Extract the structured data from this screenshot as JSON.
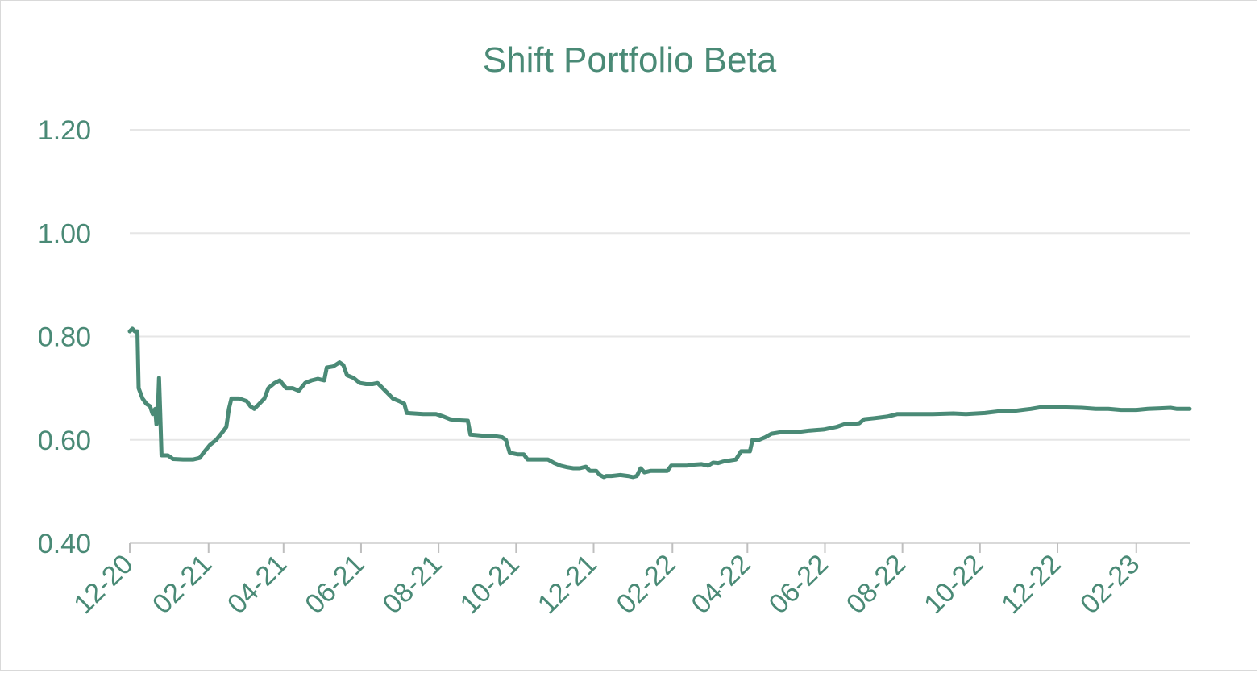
{
  "chart_data": {
    "type": "line",
    "title": "Shift Portfolio Beta",
    "xlabel": "",
    "ylabel": "",
    "y_ticks": [
      "0.40",
      "0.60",
      "0.80",
      "1.00",
      "1.20"
    ],
    "ylim": [
      0.4,
      1.2
    ],
    "x_ticks": [
      "12-20",
      "02-21",
      "04-21",
      "06-21",
      "08-21",
      "10-21",
      "12-21",
      "02-22",
      "04-22",
      "06-22",
      "08-22",
      "10-22",
      "12-22",
      "02-23"
    ],
    "xlim": [
      "2020-12-01",
      "2023-03-15"
    ],
    "grid": true,
    "legend": "none",
    "colors": {
      "line": "#4a8a76",
      "text": "#4a8a76",
      "grid": "#e6e6e6"
    },
    "series": [
      {
        "points": [
          [
            "2020-12-01",
            0.81
          ],
          [
            "2020-12-03",
            0.815
          ],
          [
            "2020-12-05",
            0.81
          ],
          [
            "2020-12-07",
            0.81
          ],
          [
            "2020-12-08",
            0.7
          ],
          [
            "2020-12-11",
            0.68
          ],
          [
            "2020-12-14",
            0.67
          ],
          [
            "2020-12-17",
            0.665
          ],
          [
            "2020-12-19",
            0.65
          ],
          [
            "2020-12-21",
            0.66
          ],
          [
            "2020-12-22",
            0.63
          ],
          [
            "2020-12-23",
            0.65
          ],
          [
            "2020-12-24",
            0.72
          ],
          [
            "2020-12-25",
            0.65
          ],
          [
            "2020-12-26",
            0.57
          ],
          [
            "2020-12-31",
            0.57
          ],
          [
            "2021-01-04",
            0.563
          ],
          [
            "2021-01-12",
            0.562
          ],
          [
            "2021-01-20",
            0.562
          ],
          [
            "2021-01-25",
            0.565
          ],
          [
            "2021-01-28",
            0.575
          ],
          [
            "2021-02-02",
            0.59
          ],
          [
            "2021-02-07",
            0.6
          ],
          [
            "2021-02-12",
            0.615
          ],
          [
            "2021-02-15",
            0.625
          ],
          [
            "2021-02-17",
            0.66
          ],
          [
            "2021-02-19",
            0.68
          ],
          [
            "2021-02-25",
            0.68
          ],
          [
            "2021-03-03",
            0.675
          ],
          [
            "2021-03-06",
            0.665
          ],
          [
            "2021-03-09",
            0.66
          ],
          [
            "2021-03-13",
            0.67
          ],
          [
            "2021-03-17",
            0.68
          ],
          [
            "2021-03-20",
            0.7
          ],
          [
            "2021-03-25",
            0.71
          ],
          [
            "2021-03-29",
            0.715
          ],
          [
            "2021-04-03",
            0.7
          ],
          [
            "2021-04-08",
            0.7
          ],
          [
            "2021-04-13",
            0.695
          ],
          [
            "2021-04-18",
            0.71
          ],
          [
            "2021-04-23",
            0.715
          ],
          [
            "2021-04-28",
            0.718
          ],
          [
            "2021-05-03",
            0.715
          ],
          [
            "2021-05-05",
            0.74
          ],
          [
            "2021-05-10",
            0.742
          ],
          [
            "2021-05-15",
            0.75
          ],
          [
            "2021-05-18",
            0.745
          ],
          [
            "2021-05-21",
            0.725
          ],
          [
            "2021-05-26",
            0.72
          ],
          [
            "2021-05-31",
            0.71
          ],
          [
            "2021-06-05",
            0.708
          ],
          [
            "2021-06-10",
            0.708
          ],
          [
            "2021-06-14",
            0.71
          ],
          [
            "2021-06-18",
            0.7
          ],
          [
            "2021-06-22",
            0.69
          ],
          [
            "2021-06-26",
            0.68
          ],
          [
            "2021-07-01",
            0.675
          ],
          [
            "2021-07-05",
            0.67
          ],
          [
            "2021-07-07",
            0.652
          ],
          [
            "2021-07-20",
            0.65
          ],
          [
            "2021-07-30",
            0.65
          ],
          [
            "2021-08-05",
            0.645
          ],
          [
            "2021-08-10",
            0.64
          ],
          [
            "2021-08-16",
            0.638
          ],
          [
            "2021-08-24",
            0.637
          ],
          [
            "2021-08-26",
            0.61
          ],
          [
            "2021-09-05",
            0.608
          ],
          [
            "2021-09-15",
            0.607
          ],
          [
            "2021-09-20",
            0.605
          ],
          [
            "2021-09-23",
            0.6
          ],
          [
            "2021-09-26",
            0.575
          ],
          [
            "2021-10-02",
            0.572
          ],
          [
            "2021-10-07",
            0.572
          ],
          [
            "2021-10-10",
            0.562
          ],
          [
            "2021-10-18",
            0.562
          ],
          [
            "2021-10-26",
            0.562
          ],
          [
            "2021-10-31",
            0.555
          ],
          [
            "2021-11-05",
            0.55
          ],
          [
            "2021-11-10",
            0.547
          ],
          [
            "2021-11-15",
            0.545
          ],
          [
            "2021-11-20",
            0.545
          ],
          [
            "2021-11-25",
            0.548
          ],
          [
            "2021-11-28",
            0.54
          ],
          [
            "2021-12-03",
            0.54
          ],
          [
            "2021-12-06",
            0.532
          ],
          [
            "2021-12-09",
            0.528
          ],
          [
            "2021-12-11",
            0.53
          ],
          [
            "2021-12-15",
            0.53
          ],
          [
            "2021-12-22",
            0.532
          ],
          [
            "2021-12-28",
            0.53
          ],
          [
            "2022-01-01",
            0.528
          ],
          [
            "2022-01-04",
            0.53
          ],
          [
            "2022-01-07",
            0.545
          ],
          [
            "2022-01-10",
            0.537
          ],
          [
            "2022-01-15",
            0.54
          ],
          [
            "2022-01-22",
            0.54
          ],
          [
            "2022-01-28",
            0.54
          ],
          [
            "2022-01-31",
            0.55
          ],
          [
            "2022-02-05",
            0.55
          ],
          [
            "2022-02-12",
            0.55
          ],
          [
            "2022-02-18",
            0.552
          ],
          [
            "2022-02-24",
            0.553
          ],
          [
            "2022-03-01",
            0.55
          ],
          [
            "2022-03-05",
            0.556
          ],
          [
            "2022-03-09",
            0.555
          ],
          [
            "2022-03-13",
            0.558
          ],
          [
            "2022-03-18",
            0.56
          ],
          [
            "2022-03-23",
            0.562
          ],
          [
            "2022-03-27",
            0.578
          ],
          [
            "2022-04-03",
            0.578
          ],
          [
            "2022-04-05",
            0.6
          ],
          [
            "2022-04-10",
            0.6
          ],
          [
            "2022-04-15",
            0.605
          ],
          [
            "2022-04-20",
            0.612
          ],
          [
            "2022-04-28",
            0.615
          ],
          [
            "2022-05-10",
            0.615
          ],
          [
            "2022-05-20",
            0.618
          ],
          [
            "2022-05-31",
            0.62
          ],
          [
            "2022-06-10",
            0.625
          ],
          [
            "2022-06-16",
            0.63
          ],
          [
            "2022-06-28",
            0.632
          ],
          [
            "2022-07-02",
            0.64
          ],
          [
            "2022-07-10",
            0.642
          ],
          [
            "2022-07-20",
            0.645
          ],
          [
            "2022-07-28",
            0.65
          ],
          [
            "2022-08-10",
            0.65
          ],
          [
            "2022-08-25",
            0.65
          ],
          [
            "2022-09-10",
            0.651
          ],
          [
            "2022-09-20",
            0.65
          ],
          [
            "2022-10-05",
            0.652
          ],
          [
            "2022-10-15",
            0.655
          ],
          [
            "2022-10-28",
            0.656
          ],
          [
            "2022-11-10",
            0.66
          ],
          [
            "2022-11-20",
            0.664
          ],
          [
            "2022-12-05",
            0.663
          ],
          [
            "2022-12-20",
            0.662
          ],
          [
            "2022-12-31",
            0.66
          ],
          [
            "2023-01-10",
            0.66
          ],
          [
            "2023-01-20",
            0.658
          ],
          [
            "2023-02-01",
            0.658
          ],
          [
            "2023-02-10",
            0.66
          ],
          [
            "2023-02-20",
            0.661
          ],
          [
            "2023-02-28",
            0.662
          ],
          [
            "2023-03-05",
            0.66
          ],
          [
            "2023-03-15",
            0.66
          ]
        ]
      }
    ]
  }
}
